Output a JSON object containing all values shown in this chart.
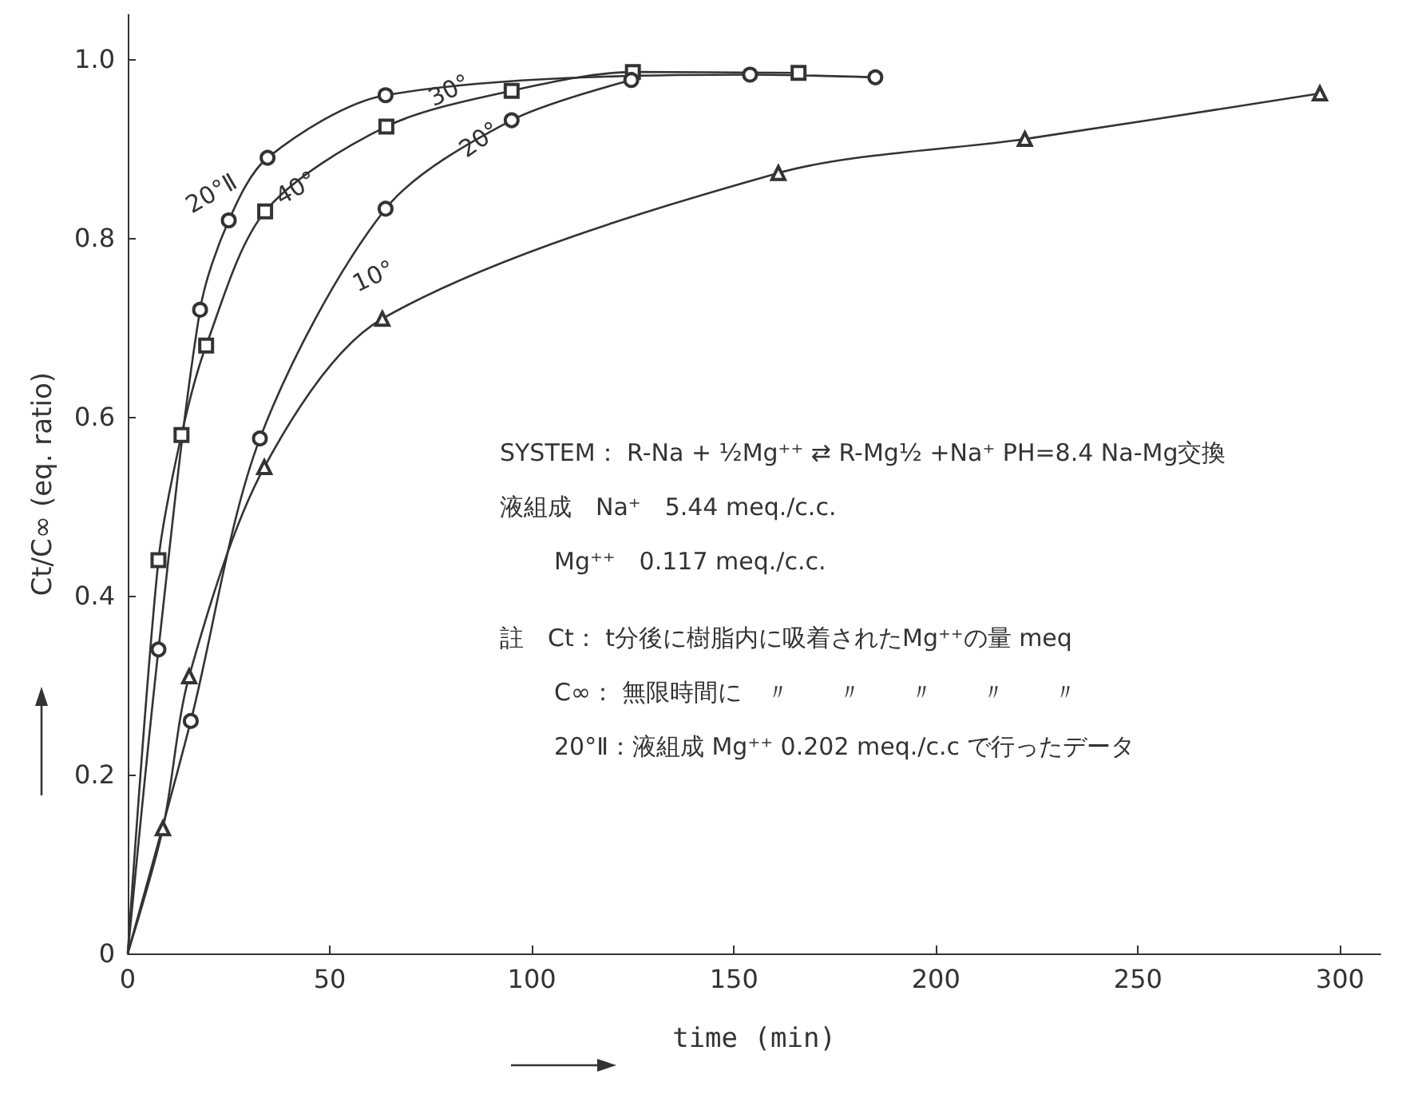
{
  "chart_data": {
    "type": "line",
    "xlabel": "time (min)",
    "ylabel": "Ct/C∞ (eq. ratio)",
    "xlim": [
      0,
      310
    ],
    "xticks": [
      0,
      50,
      100,
      150,
      200,
      250,
      300
    ],
    "ylim": [
      0,
      1.05
    ],
    "yticks": [
      0,
      0.2,
      0.4,
      0.6,
      {
        "value": 0.8,
        "label": "0.8"
      },
      {
        "value": 1,
        "label": "1.0"
      }
    ],
    "grid": false,
    "legend": false,
    "line_style": "solid",
    "color": "#333333",
    "series": [
      {
        "name": "20°Ⅱ",
        "marker": "circle",
        "x": [
          0,
          7.6,
          17.9,
          25,
          34.6,
          63.8,
          154,
          185
        ],
        "values": [
          0,
          0.34,
          0.72,
          0.82,
          0.89,
          0.96,
          0.983,
          0.98
        ]
      },
      {
        "name": "40°",
        "marker": "square",
        "x": [
          0,
          7.6,
          13.3,
          19.4,
          34,
          64,
          95,
          125,
          166
        ],
        "values": [
          0,
          0.44,
          0.58,
          0.68,
          0.83,
          0.925,
          0.965,
          0.986,
          0.985
        ]
      },
      {
        "name": "20°",
        "marker": "circle",
        "x": [
          0,
          15.6,
          32.7,
          63.8,
          95,
          124.6
        ],
        "values": [
          0,
          0.26,
          0.576,
          0.833,
          0.932,
          0.977
        ]
      },
      {
        "name": "10°",
        "marker": "triangle",
        "x": [
          0,
          8.7,
          15.2,
          33.8,
          63,
          161,
          222,
          295
        ],
        "values": [
          0,
          0.14,
          0.31,
          0.544,
          0.71,
          0.873,
          0.911,
          0.962
        ]
      }
    ],
    "annotations": [
      "30°",
      "SYSTEM： R-Na + ½Mg⁺⁺ ⇄ R-Mg½ +Na⁺ PH=8.4 Na-Mg交換",
      "液組成　Na⁺　5.44 meq./c.c.",
      "Mg⁺⁺　0.117 meq./c.c.",
      "註　Ct： t分後に樹脂内に吸着されたMg⁺⁺の量 meq",
      "C∞： 無限時間に　〃　　〃　　〃　　〃　　〃",
      "20°Ⅱ：液組成 Mg⁺⁺ 0.202 meq./c.c で行ったデータ"
    ]
  }
}
